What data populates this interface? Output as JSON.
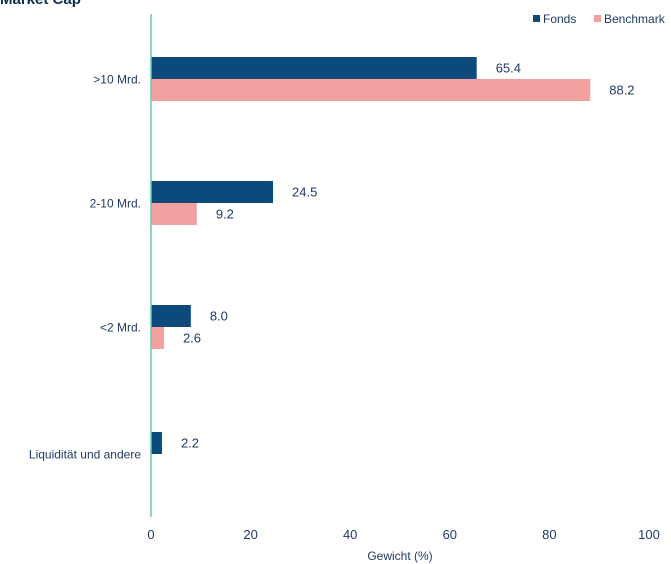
{
  "title": "Market Cap",
  "colors": {
    "fonds": "#0b4a7a",
    "benchmark": "#f2a0a0",
    "axis": "#6fc3b8",
    "text": "#1f3b66"
  },
  "chart_data": {
    "type": "bar",
    "orientation": "horizontal",
    "categories": [
      ">10 Mrd.",
      "2-10 Mrd.",
      "<2 Mrd.",
      "Liquidität und andere"
    ],
    "series": [
      {
        "name": "Fonds",
        "values": [
          65.4,
          24.5,
          8.0,
          2.2
        ],
        "labels": [
          "65.4",
          "24.5",
          "8.0",
          "2.2"
        ]
      },
      {
        "name": "Benchmark",
        "values": [
          88.2,
          9.2,
          2.6,
          null
        ],
        "labels": [
          "88.2",
          "9.2",
          "2.6",
          null
        ]
      }
    ],
    "xlabel": "Gewicht (%)",
    "xlim": [
      0,
      100
    ],
    "xticks": [
      "0",
      "20",
      "40",
      "60",
      "80",
      "100"
    ],
    "legend_position": "top-right",
    "grid": false
  }
}
